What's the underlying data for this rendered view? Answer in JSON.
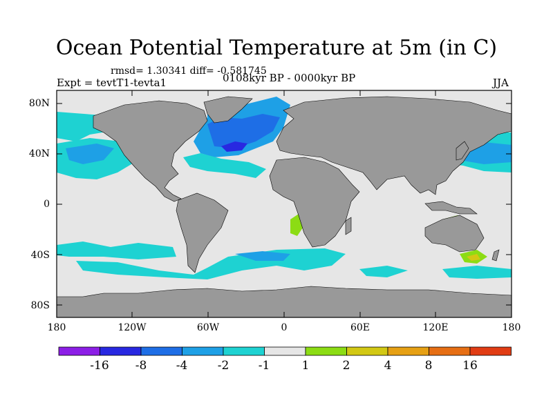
{
  "title": "Ocean Potential Temperature at 5m (in C)",
  "stats": "rmsd= 1.30341 diff= -0.581745",
  "left_label": "Expt = tevtT1-tevta1",
  "center_label": "0108kyr BP - 0000kyr BP",
  "right_label": "JJA",
  "lat_ticks": [
    "80N",
    "40N",
    "0",
    "40S",
    "80S"
  ],
  "lon_ticks": [
    "180",
    "120W",
    "60W",
    "0",
    "60E",
    "120E",
    "180"
  ],
  "colorbar": {
    "colors": [
      "#8c1ee6",
      "#2828e1",
      "#1e6ee6",
      "#1ea0e6",
      "#1ed2d2",
      "#e6e6e6",
      "#8cdc14",
      "#d2c814",
      "#e6a014",
      "#e66e14",
      "#e13c14"
    ],
    "labels": [
      "-16",
      "-8",
      "-4",
      "-2",
      "-1",
      "1",
      "2",
      "4",
      "8",
      "16"
    ]
  },
  "colors": {
    "land": "#999999",
    "ocean_background": "#e6e6e6",
    "frame": "#000000"
  }
}
